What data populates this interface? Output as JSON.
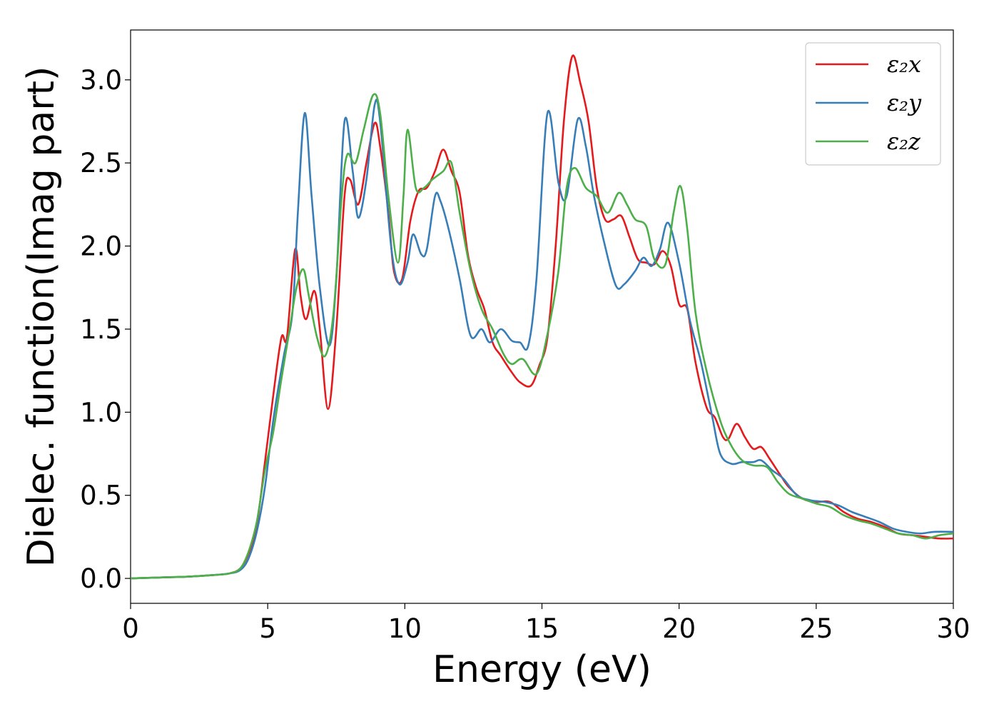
{
  "chart_data": {
    "type": "line",
    "title": "",
    "xlabel": "Energy (eV)",
    "ylabel": "Dielec. function(Imag part)",
    "xlim": [
      0,
      30
    ],
    "ylim": [
      -0.15,
      3.3
    ],
    "xticks": [
      0,
      5,
      10,
      15,
      20,
      25,
      30
    ],
    "xtick_labels": [
      "0",
      "5",
      "10",
      "15",
      "20",
      "25",
      "30"
    ],
    "yticks": [
      0.0,
      0.5,
      1.0,
      1.5,
      2.0,
      2.5,
      3.0
    ],
    "ytick_labels": [
      "0.0",
      "0.5",
      "1.0",
      "1.5",
      "2.0",
      "2.5",
      "3.0"
    ],
    "grid": false,
    "legend_position": "top-right",
    "series": [
      {
        "name": "ε₂x",
        "color": "#e41a1c",
        "points": [
          [
            0,
            0
          ],
          [
            1,
            0.005
          ],
          [
            2,
            0.01
          ],
          [
            3,
            0.02
          ],
          [
            3.6,
            0.03
          ],
          [
            4,
            0.06
          ],
          [
            4.3,
            0.15
          ],
          [
            4.6,
            0.32
          ],
          [
            4.9,
            0.7
          ],
          [
            5.2,
            1.1
          ],
          [
            5.5,
            1.45
          ],
          [
            5.7,
            1.45
          ],
          [
            6,
            1.98
          ],
          [
            6.2,
            1.7
          ],
          [
            6.4,
            1.56
          ],
          [
            6.7,
            1.73
          ],
          [
            6.9,
            1.5
          ],
          [
            7.2,
            1.02
          ],
          [
            7.5,
            1.5
          ],
          [
            7.8,
            2.3
          ],
          [
            8,
            2.4
          ],
          [
            8.3,
            2.25
          ],
          [
            8.6,
            2.5
          ],
          [
            8.9,
            2.74
          ],
          [
            9.1,
            2.6
          ],
          [
            9.4,
            2.2
          ],
          [
            9.6,
            1.85
          ],
          [
            9.9,
            1.8
          ],
          [
            10.2,
            2.15
          ],
          [
            10.5,
            2.33
          ],
          [
            10.8,
            2.35
          ],
          [
            11.1,
            2.45
          ],
          [
            11.4,
            2.58
          ],
          [
            11.7,
            2.45
          ],
          [
            12,
            2.32
          ],
          [
            12.3,
            1.95
          ],
          [
            12.6,
            1.75
          ],
          [
            12.9,
            1.62
          ],
          [
            13.2,
            1.42
          ],
          [
            13.5,
            1.34
          ],
          [
            13.9,
            1.24
          ],
          [
            14.2,
            1.18
          ],
          [
            14.6,
            1.16
          ],
          [
            14.9,
            1.28
          ],
          [
            15.2,
            1.45
          ],
          [
            15.5,
            2.0
          ],
          [
            15.8,
            2.75
          ],
          [
            16.1,
            3.14
          ],
          [
            16.4,
            2.98
          ],
          [
            16.7,
            2.75
          ],
          [
            17,
            2.35
          ],
          [
            17.3,
            2.16
          ],
          [
            17.6,
            2.16
          ],
          [
            17.9,
            2.18
          ],
          [
            18.2,
            2.05
          ],
          [
            18.5,
            1.92
          ],
          [
            18.8,
            1.9
          ],
          [
            19.1,
            1.89
          ],
          [
            19.4,
            1.97
          ],
          [
            19.7,
            1.88
          ],
          [
            20,
            1.65
          ],
          [
            20.3,
            1.62
          ],
          [
            20.6,
            1.3
          ],
          [
            21,
            1.03
          ],
          [
            21.3,
            0.97
          ],
          [
            21.6,
            0.85
          ],
          [
            21.8,
            0.84
          ],
          [
            22.1,
            0.93
          ],
          [
            22.4,
            0.85
          ],
          [
            22.7,
            0.78
          ],
          [
            23,
            0.79
          ],
          [
            23.3,
            0.72
          ],
          [
            23.7,
            0.62
          ],
          [
            24,
            0.55
          ],
          [
            24.5,
            0.48
          ],
          [
            25,
            0.46
          ],
          [
            25.5,
            0.46
          ],
          [
            26,
            0.4
          ],
          [
            26.5,
            0.36
          ],
          [
            27,
            0.34
          ],
          [
            27.5,
            0.31
          ],
          [
            28,
            0.27
          ],
          [
            28.5,
            0.26
          ],
          [
            29,
            0.25
          ],
          [
            29.5,
            0.24
          ],
          [
            30,
            0.24
          ]
        ]
      },
      {
        "name": "ε₂y",
        "color": "#377eb8",
        "points": [
          [
            0,
            0
          ],
          [
            1,
            0.005
          ],
          [
            2,
            0.01
          ],
          [
            3,
            0.02
          ],
          [
            3.6,
            0.03
          ],
          [
            4,
            0.05
          ],
          [
            4.3,
            0.12
          ],
          [
            4.6,
            0.28
          ],
          [
            4.9,
            0.55
          ],
          [
            5.2,
            0.95
          ],
          [
            5.6,
            1.35
          ],
          [
            5.9,
            1.6
          ],
          [
            6.1,
            2.2
          ],
          [
            6.35,
            2.8
          ],
          [
            6.6,
            2.3
          ],
          [
            6.9,
            1.75
          ],
          [
            7.25,
            1.4
          ],
          [
            7.5,
            1.8
          ],
          [
            7.8,
            2.75
          ],
          [
            8.1,
            2.45
          ],
          [
            8.3,
            2.17
          ],
          [
            8.6,
            2.4
          ],
          [
            8.9,
            2.85
          ],
          [
            9.1,
            2.75
          ],
          [
            9.5,
            2.0
          ],
          [
            9.8,
            1.77
          ],
          [
            10.1,
            1.9
          ],
          [
            10.3,
            2.07
          ],
          [
            10.6,
            1.95
          ],
          [
            10.8,
            1.98
          ],
          [
            11.1,
            2.3
          ],
          [
            11.3,
            2.27
          ],
          [
            11.6,
            2.1
          ],
          [
            12,
            1.8
          ],
          [
            12.4,
            1.46
          ],
          [
            12.8,
            1.5
          ],
          [
            13.1,
            1.42
          ],
          [
            13.5,
            1.5
          ],
          [
            13.9,
            1.43
          ],
          [
            14.2,
            1.42
          ],
          [
            14.5,
            1.4
          ],
          [
            14.8,
            1.8
          ],
          [
            15.2,
            2.8
          ],
          [
            15.6,
            2.38
          ],
          [
            15.9,
            2.3
          ],
          [
            16.3,
            2.76
          ],
          [
            16.6,
            2.6
          ],
          [
            16.9,
            2.3
          ],
          [
            17.3,
            2.0
          ],
          [
            17.7,
            1.76
          ],
          [
            18,
            1.77
          ],
          [
            18.4,
            1.85
          ],
          [
            18.7,
            1.93
          ],
          [
            19,
            1.88
          ],
          [
            19.3,
            1.98
          ],
          [
            19.6,
            2.14
          ],
          [
            20,
            1.9
          ],
          [
            20.4,
            1.55
          ],
          [
            20.8,
            1.3
          ],
          [
            21.2,
            0.98
          ],
          [
            21.5,
            0.75
          ],
          [
            21.9,
            0.69
          ],
          [
            22.3,
            0.7
          ],
          [
            22.7,
            0.7
          ],
          [
            23,
            0.71
          ],
          [
            23.4,
            0.65
          ],
          [
            23.8,
            0.6
          ],
          [
            24.3,
            0.5
          ],
          [
            24.8,
            0.47
          ],
          [
            25.3,
            0.46
          ],
          [
            25.8,
            0.44
          ],
          [
            26.3,
            0.4
          ],
          [
            26.8,
            0.37
          ],
          [
            27.3,
            0.34
          ],
          [
            27.8,
            0.3
          ],
          [
            28.3,
            0.28
          ],
          [
            28.8,
            0.27
          ],
          [
            29.3,
            0.28
          ],
          [
            30,
            0.28
          ]
        ]
      },
      {
        "name": "ε₂z",
        "color": "#4daf4a",
        "points": [
          [
            0,
            0
          ],
          [
            1,
            0.005
          ],
          [
            2,
            0.01
          ],
          [
            3,
            0.02
          ],
          [
            3.6,
            0.03
          ],
          [
            4,
            0.06
          ],
          [
            4.3,
            0.16
          ],
          [
            4.6,
            0.34
          ],
          [
            4.9,
            0.65
          ],
          [
            5.2,
            0.88
          ],
          [
            5.5,
            1.2
          ],
          [
            5.8,
            1.5
          ],
          [
            6.05,
            1.75
          ],
          [
            6.3,
            1.86
          ],
          [
            6.5,
            1.7
          ],
          [
            6.8,
            1.45
          ],
          [
            7.1,
            1.34
          ],
          [
            7.4,
            1.6
          ],
          [
            7.7,
            2.3
          ],
          [
            7.9,
            2.55
          ],
          [
            8.2,
            2.5
          ],
          [
            8.5,
            2.7
          ],
          [
            8.85,
            2.91
          ],
          [
            9.1,
            2.8
          ],
          [
            9.4,
            2.3
          ],
          [
            9.75,
            1.9
          ],
          [
            9.95,
            2.3
          ],
          [
            10.1,
            2.7
          ],
          [
            10.4,
            2.35
          ],
          [
            10.7,
            2.35
          ],
          [
            11,
            2.4
          ],
          [
            11.4,
            2.45
          ],
          [
            11.7,
            2.5
          ],
          [
            12,
            2.2
          ],
          [
            12.4,
            1.85
          ],
          [
            12.8,
            1.62
          ],
          [
            13.2,
            1.5
          ],
          [
            13.6,
            1.35
          ],
          [
            13.9,
            1.29
          ],
          [
            14.3,
            1.32
          ],
          [
            14.8,
            1.23
          ],
          [
            15.2,
            1.47
          ],
          [
            15.6,
            1.85
          ],
          [
            15.9,
            2.35
          ],
          [
            16.2,
            2.47
          ],
          [
            16.6,
            2.35
          ],
          [
            17,
            2.3
          ],
          [
            17.4,
            2.2
          ],
          [
            17.8,
            2.32
          ],
          [
            18.1,
            2.25
          ],
          [
            18.4,
            2.16
          ],
          [
            18.8,
            2.12
          ],
          [
            19.1,
            1.92
          ],
          [
            19.5,
            1.89
          ],
          [
            19.8,
            2.2
          ],
          [
            20.05,
            2.36
          ],
          [
            20.3,
            2.1
          ],
          [
            20.6,
            1.6
          ],
          [
            21,
            1.25
          ],
          [
            21.5,
            0.95
          ],
          [
            21.9,
            0.8
          ],
          [
            22.3,
            0.71
          ],
          [
            22.7,
            0.68
          ],
          [
            23.2,
            0.67
          ],
          [
            23.6,
            0.58
          ],
          [
            24,
            0.51
          ],
          [
            24.5,
            0.48
          ],
          [
            25,
            0.45
          ],
          [
            25.5,
            0.43
          ],
          [
            26,
            0.38
          ],
          [
            26.5,
            0.35
          ],
          [
            27,
            0.33
          ],
          [
            27.5,
            0.3
          ],
          [
            28,
            0.27
          ],
          [
            28.5,
            0.26
          ],
          [
            29,
            0.24
          ],
          [
            29.5,
            0.26
          ],
          [
            30,
            0.27
          ]
        ]
      }
    ]
  }
}
